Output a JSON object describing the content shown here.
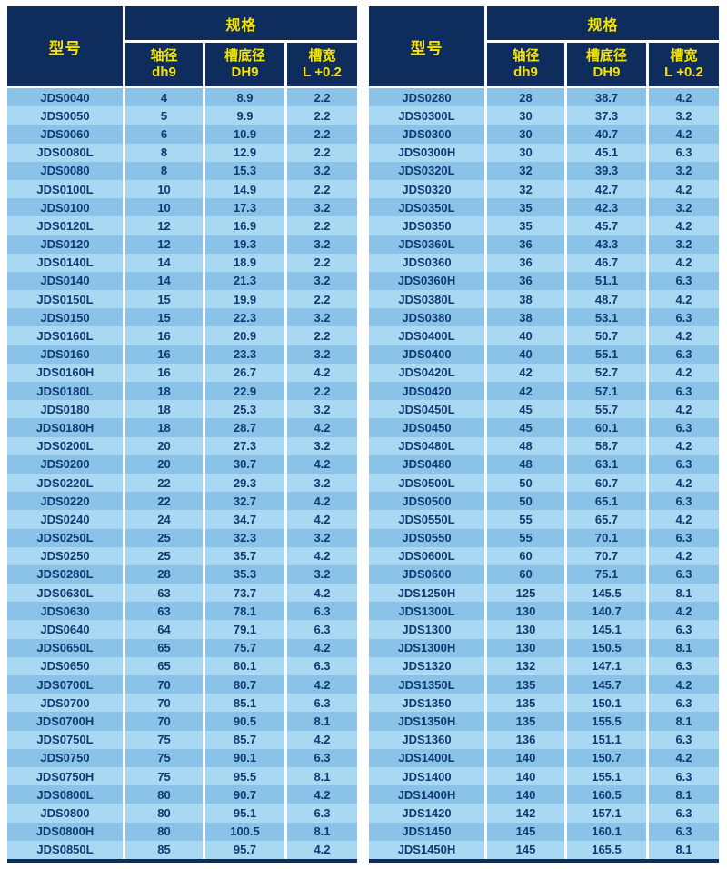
{
  "columns": {
    "model": "型号",
    "spec_group": "规格",
    "shaft": {
      "line1": "轴径",
      "line2": "dh9"
    },
    "groove_bottom": {
      "line1": "槽底径",
      "line2": "DH9"
    },
    "groove_width": {
      "line1": "槽宽",
      "line2": "L +0.2"
    }
  },
  "colors": {
    "header_bg": "#0e2d5c",
    "header_text": "#f6e400",
    "row_dark": "#8bc3e8",
    "row_light": "#a9d8f2",
    "cell_text": "#0d3a70",
    "grid_line": "#ffffff"
  },
  "tables": {
    "left": {
      "rows": [
        [
          "JDS0040",
          "4",
          "8.9",
          "2.2"
        ],
        [
          "JDS0050",
          "5",
          "9.9",
          "2.2"
        ],
        [
          "JDS0060",
          "6",
          "10.9",
          "2.2"
        ],
        [
          "JDS0080L",
          "8",
          "12.9",
          "2.2"
        ],
        [
          "JDS0080",
          "8",
          "15.3",
          "3.2"
        ],
        [
          "JDS0100L",
          "10",
          "14.9",
          "2.2"
        ],
        [
          "JDS0100",
          "10",
          "17.3",
          "3.2"
        ],
        [
          "JDS0120L",
          "12",
          "16.9",
          "2.2"
        ],
        [
          "JDS0120",
          "12",
          "19.3",
          "3.2"
        ],
        [
          "JDS0140L",
          "14",
          "18.9",
          "2.2"
        ],
        [
          "JDS0140",
          "14",
          "21.3",
          "3.2"
        ],
        [
          "JDS0150L",
          "15",
          "19.9",
          "2.2"
        ],
        [
          "JDS0150",
          "15",
          "22.3",
          "3.2"
        ],
        [
          "JDS0160L",
          "16",
          "20.9",
          "2.2"
        ],
        [
          "JDS0160",
          "16",
          "23.3",
          "3.2"
        ],
        [
          "JDS0160H",
          "16",
          "26.7",
          "4.2"
        ],
        [
          "JDS0180L",
          "18",
          "22.9",
          "2.2"
        ],
        [
          "JDS0180",
          "18",
          "25.3",
          "3.2"
        ],
        [
          "JDS0180H",
          "18",
          "28.7",
          "4.2"
        ],
        [
          "JDS0200L",
          "20",
          "27.3",
          "3.2"
        ],
        [
          "JDS0200",
          "20",
          "30.7",
          "4.2"
        ],
        [
          "JDS0220L",
          "22",
          "29.3",
          "3.2"
        ],
        [
          "JDS0220",
          "22",
          "32.7",
          "4.2"
        ],
        [
          "JDS0240",
          "24",
          "34.7",
          "4.2"
        ],
        [
          "JDS0250L",
          "25",
          "32.3",
          "3.2"
        ],
        [
          "JDS0250",
          "25",
          "35.7",
          "4.2"
        ],
        [
          "JDS0280L",
          "28",
          "35.3",
          "3.2"
        ],
        [
          "JDS0630L",
          "63",
          "73.7",
          "4.2"
        ],
        [
          "JDS0630",
          "63",
          "78.1",
          "6.3"
        ],
        [
          "JDS0640",
          "64",
          "79.1",
          "6.3"
        ],
        [
          "JDS0650L",
          "65",
          "75.7",
          "4.2"
        ],
        [
          "JDS0650",
          "65",
          "80.1",
          "6.3"
        ],
        [
          "JDS0700L",
          "70",
          "80.7",
          "4.2"
        ],
        [
          "JDS0700",
          "70",
          "85.1",
          "6.3"
        ],
        [
          "JDS0700H",
          "70",
          "90.5",
          "8.1"
        ],
        [
          "JDS0750L",
          "75",
          "85.7",
          "4.2"
        ],
        [
          "JDS0750",
          "75",
          "90.1",
          "6.3"
        ],
        [
          "JDS0750H",
          "75",
          "95.5",
          "8.1"
        ],
        [
          "JDS0800L",
          "80",
          "90.7",
          "4.2"
        ],
        [
          "JDS0800",
          "80",
          "95.1",
          "6.3"
        ],
        [
          "JDS0800H",
          "80",
          "100.5",
          "8.1"
        ],
        [
          "JDS0850L",
          "85",
          "95.7",
          "4.2"
        ]
      ]
    },
    "right": {
      "rows": [
        [
          "JDS0280",
          "28",
          "38.7",
          "4.2"
        ],
        [
          "JDS0300L",
          "30",
          "37.3",
          "3.2"
        ],
        [
          "JDS0300",
          "30",
          "40.7",
          "4.2"
        ],
        [
          "JDS0300H",
          "30",
          "45.1",
          "6.3"
        ],
        [
          "JDS0320L",
          "32",
          "39.3",
          "3.2"
        ],
        [
          "JDS0320",
          "32",
          "42.7",
          "4.2"
        ],
        [
          "JDS0350L",
          "35",
          "42.3",
          "3.2"
        ],
        [
          "JDS0350",
          "35",
          "45.7",
          "4.2"
        ],
        [
          "JDS0360L",
          "36",
          "43.3",
          "3.2"
        ],
        [
          "JDS0360",
          "36",
          "46.7",
          "4.2"
        ],
        [
          "JDS0360H",
          "36",
          "51.1",
          "6.3"
        ],
        [
          "JDS0380L",
          "38",
          "48.7",
          "4.2"
        ],
        [
          "JDS0380",
          "38",
          "53.1",
          "6.3"
        ],
        [
          "JDS0400L",
          "40",
          "50.7",
          "4.2"
        ],
        [
          "JDS0400",
          "40",
          "55.1",
          "6.3"
        ],
        [
          "JDS0420L",
          "42",
          "52.7",
          "4.2"
        ],
        [
          "JDS0420",
          "42",
          "57.1",
          "6.3"
        ],
        [
          "JDS0450L",
          "45",
          "55.7",
          "4.2"
        ],
        [
          "JDS0450",
          "45",
          "60.1",
          "6.3"
        ],
        [
          "JDS0480L",
          "48",
          "58.7",
          "4.2"
        ],
        [
          "JDS0480",
          "48",
          "63.1",
          "6.3"
        ],
        [
          "JDS0500L",
          "50",
          "60.7",
          "4.2"
        ],
        [
          "JDS0500",
          "50",
          "65.1",
          "6.3"
        ],
        [
          "JDS0550L",
          "55",
          "65.7",
          "4.2"
        ],
        [
          "JDS0550",
          "55",
          "70.1",
          "6.3"
        ],
        [
          "JDS0600L",
          "60",
          "70.7",
          "4.2"
        ],
        [
          "JDS0600",
          "60",
          "75.1",
          "6.3"
        ],
        [
          "JDS1250H",
          "125",
          "145.5",
          "8.1"
        ],
        [
          "JDS1300L",
          "130",
          "140.7",
          "4.2"
        ],
        [
          "JDS1300",
          "130",
          "145.1",
          "6.3"
        ],
        [
          "JDS1300H",
          "130",
          "150.5",
          "8.1"
        ],
        [
          "JDS1320",
          "132",
          "147.1",
          "6.3"
        ],
        [
          "JDS1350L",
          "135",
          "145.7",
          "4.2"
        ],
        [
          "JDS1350",
          "135",
          "150.1",
          "6.3"
        ],
        [
          "JDS1350H",
          "135",
          "155.5",
          "8.1"
        ],
        [
          "JDS1360",
          "136",
          "151.1",
          "6.3"
        ],
        [
          "JDS1400L",
          "140",
          "150.7",
          "4.2"
        ],
        [
          "JDS1400",
          "140",
          "155.1",
          "6.3"
        ],
        [
          "JDS1400H",
          "140",
          "160.5",
          "8.1"
        ],
        [
          "JDS1420",
          "142",
          "157.1",
          "6.3"
        ],
        [
          "JDS1450",
          "145",
          "160.1",
          "6.3"
        ],
        [
          "JDS1450H",
          "145",
          "165.5",
          "8.1"
        ]
      ]
    }
  }
}
